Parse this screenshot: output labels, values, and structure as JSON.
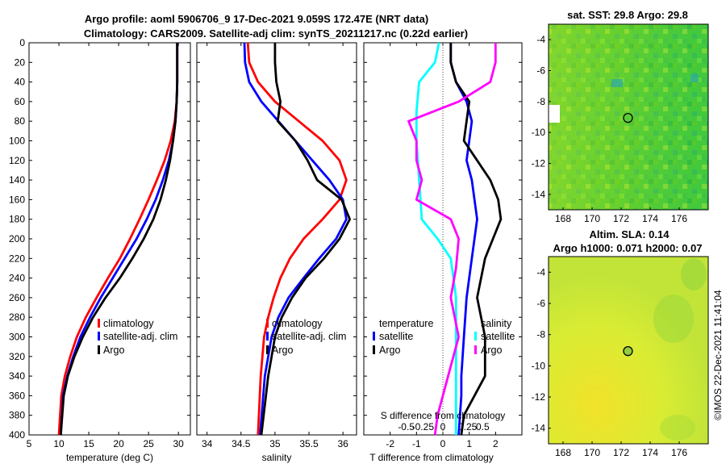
{
  "titles": {
    "line1": "Argo profile: aoml 5906706_9 17-Dec-2021 9.059S 172.47E (NRT data)",
    "line2": "Climatology: CARS2009. Satellite-adj clim: synTS_20211217.nc (0.22d earlier)",
    "sst": "sat. SST: 29.8 Argo: 29.8",
    "sla1": "Altim. SLA: 0.14",
    "sla2": "Argo h1000: 0.071 h2000: 0.07",
    "credit": "©IMOS 22-Dec-2021 11:41:04"
  },
  "colors": {
    "climatology": "#ff0000",
    "satellite": "#0000ff",
    "argo": "#000000",
    "salinity_diff": "#ff00ff",
    "temperature_diff": "#00ffff",
    "zero_line": "#444444",
    "sst_field": "#33cc33",
    "sla_field": "#ccee33"
  },
  "legends": {
    "temperature_panel": [
      "climatology",
      "satellite-adj. clim",
      "Argo"
    ],
    "salinity_panel": [
      "climatology",
      "satellite-adj. clim",
      "Argo"
    ],
    "diff_panel": {
      "temperature_title": "temperature",
      "salinity_title": "salinity",
      "temperature_items": [
        "satellite",
        "Argo"
      ],
      "salinity_items": [
        "satellite",
        "Argo"
      ]
    }
  },
  "chart_data": [
    {
      "id": "temperature",
      "type": "line",
      "xlabel": "temperature (deg C)",
      "ylabel": "",
      "xlim": [
        5,
        32
      ],
      "ylim": [
        400,
        0
      ],
      "xticks": [
        5,
        10,
        15,
        20,
        25,
        30
      ],
      "yticks": [
        0,
        20,
        40,
        60,
        80,
        100,
        120,
        140,
        160,
        180,
        200,
        220,
        240,
        260,
        280,
        300,
        320,
        340,
        360,
        380,
        400
      ],
      "series": [
        {
          "name": "climatology",
          "color_key": "climatology",
          "x": [
            29.8,
            29.8,
            29.7,
            29.4,
            28.7,
            27.7,
            26.4,
            25.0,
            23.5,
            21.9,
            20.2,
            18.2,
            16.3,
            14.5,
            13.0,
            11.9,
            11.0,
            10.4,
            10.0
          ],
          "y": [
            0,
            40,
            60,
            80,
            100,
            120,
            140,
            160,
            180,
            200,
            220,
            240,
            260,
            280,
            300,
            320,
            340,
            360,
            400
          ]
        },
        {
          "name": "satellite-adj. clim",
          "color_key": "satellite",
          "x": [
            29.8,
            29.8,
            29.7,
            29.5,
            29.1,
            28.4,
            27.4,
            26.2,
            24.7,
            23.0,
            21.0,
            19.0,
            17.0,
            15.2,
            13.6,
            12.4,
            11.4,
            10.7,
            10.3
          ],
          "y": [
            0,
            40,
            60,
            80,
            100,
            120,
            140,
            160,
            180,
            200,
            220,
            240,
            260,
            280,
            300,
            320,
            340,
            360,
            400
          ]
        },
        {
          "name": "Argo",
          "color_key": "argo",
          "x": [
            29.8,
            29.8,
            29.7,
            29.5,
            29.1,
            28.6,
            27.9,
            27.0,
            25.8,
            24.2,
            22.3,
            20.2,
            17.8,
            15.7,
            14.0,
            12.6,
            11.5,
            10.8,
            10.3
          ],
          "y": [
            0,
            40,
            60,
            80,
            100,
            120,
            140,
            160,
            180,
            200,
            220,
            240,
            260,
            280,
            300,
            320,
            340,
            360,
            400
          ]
        }
      ]
    },
    {
      "id": "salinity",
      "type": "line",
      "xlabel": "salinity",
      "xlim": [
        33.85,
        36.2
      ],
      "ylim": [
        400,
        0
      ],
      "xticks": [
        34,
        34.5,
        35,
        35.5,
        36
      ],
      "series": [
        {
          "name": "climatology",
          "color_key": "climatology",
          "x": [
            34.6,
            34.62,
            34.75,
            35.0,
            35.35,
            35.7,
            35.95,
            36.05,
            35.95,
            35.7,
            35.42,
            35.22,
            35.08,
            34.98,
            34.9,
            34.84,
            34.79,
            34.75
          ],
          "y": [
            0,
            20,
            40,
            60,
            80,
            100,
            120,
            140,
            160,
            180,
            200,
            220,
            240,
            260,
            280,
            300,
            340,
            400
          ]
        },
        {
          "name": "satellite-adj. clim",
          "color_key": "satellite",
          "x": [
            34.55,
            34.56,
            34.62,
            34.8,
            35.05,
            35.3,
            35.55,
            35.8,
            36.0,
            36.05,
            35.9,
            35.65,
            35.42,
            35.2,
            35.05,
            34.95,
            34.85,
            34.78
          ],
          "y": [
            0,
            20,
            40,
            60,
            80,
            100,
            120,
            140,
            160,
            180,
            200,
            220,
            240,
            260,
            280,
            300,
            340,
            400
          ]
        },
        {
          "name": "Argo",
          "color_key": "argo",
          "x": [
            35.0,
            35.0,
            35.02,
            35.08,
            35.04,
            35.3,
            35.48,
            35.62,
            35.98,
            36.1,
            35.95,
            35.72,
            35.45,
            35.25,
            35.1,
            35.0,
            34.9,
            34.8
          ],
          "y": [
            0,
            20,
            40,
            60,
            80,
            100,
            120,
            140,
            160,
            180,
            200,
            220,
            240,
            260,
            280,
            300,
            340,
            400
          ]
        }
      ]
    },
    {
      "id": "differences",
      "type": "line",
      "xlabel": "T difference from climatology",
      "top_label": "S difference from climatology",
      "xlim": [
        -3,
        3
      ],
      "ylim": [
        400,
        0
      ],
      "xticks": [
        -2,
        -1,
        0,
        1,
        2
      ],
      "top_ticks": [
        "-0.5",
        "-0.25",
        "0",
        "0.25",
        "0.5"
      ],
      "series": [
        {
          "name": "temperature satellite",
          "color_key": "satellite",
          "x": [
            0.3,
            0.3,
            0.5,
            0.9,
            1.1,
            1.0,
            0.9,
            1.1,
            1.2,
            1.3,
            1.2,
            1.1,
            0.9,
            0.8,
            0.7,
            0.7,
            0.65,
            0.6
          ],
          "y": [
            0,
            20,
            40,
            60,
            80,
            100,
            120,
            140,
            160,
            180,
            200,
            220,
            260,
            300,
            340,
            360,
            380,
            400
          ]
        },
        {
          "name": "temperature Argo",
          "color_key": "argo",
          "x": [
            0.3,
            0.3,
            0.5,
            1.0,
            0.9,
            0.8,
            1.3,
            1.8,
            2.1,
            2.2,
            1.9,
            1.6,
            1.3,
            1.6,
            1.6,
            1.2,
            0.8,
            0.7
          ],
          "y": [
            0,
            20,
            40,
            60,
            80,
            100,
            120,
            140,
            160,
            180,
            200,
            220,
            260,
            300,
            340,
            360,
            380,
            400
          ]
        },
        {
          "name": "salinity satellite",
          "color_key": "temperature_diff",
          "x": [
            -0.15,
            -0.3,
            -0.9,
            -1.0,
            -1.0,
            -0.9,
            -0.8,
            -0.2,
            0.3,
            0.4,
            0.5,
            0.5,
            0.5,
            0.5
          ],
          "y": [
            0,
            20,
            40,
            70,
            100,
            140,
            180,
            200,
            220,
            240,
            260,
            300,
            340,
            400
          ]
        },
        {
          "name": "salinity Argo",
          "color_key": "salinity_diff",
          "x": [
            2.0,
            2.0,
            1.8,
            0.6,
            -1.3,
            -1.0,
            -1.0,
            -0.8,
            -1.0,
            0.3,
            0.6,
            0.5,
            0.3,
            0.6,
            0.2,
            -0.2,
            -0.3
          ],
          "y": [
            0,
            20,
            40,
            60,
            80,
            100,
            120,
            140,
            160,
            180,
            200,
            230,
            260,
            300,
            340,
            380,
            400
          ]
        }
      ]
    },
    {
      "id": "sst_map",
      "type": "heatmap",
      "title": "sat. SST: 29.8 Argo: 29.8",
      "xlim": [
        167,
        178
      ],
      "ylim": [
        -15,
        -3
      ],
      "xticks": [
        168,
        170,
        172,
        174,
        176
      ],
      "yticks": [
        -4,
        -6,
        -8,
        -10,
        -12,
        -14
      ],
      "argo_position": [
        172.47,
        -9.06
      ]
    },
    {
      "id": "sla_map",
      "type": "heatmap",
      "title": "Altim. SLA: 0.14",
      "subtitle": "Argo h1000: 0.071 h2000: 0.07",
      "xlim": [
        167,
        178
      ],
      "ylim": [
        -15,
        -3
      ],
      "xticks": [
        168,
        170,
        172,
        174,
        176
      ],
      "yticks": [
        -4,
        -6,
        -8,
        -10,
        -12,
        -14
      ],
      "argo_position": [
        172.47,
        -9.06
      ]
    }
  ]
}
